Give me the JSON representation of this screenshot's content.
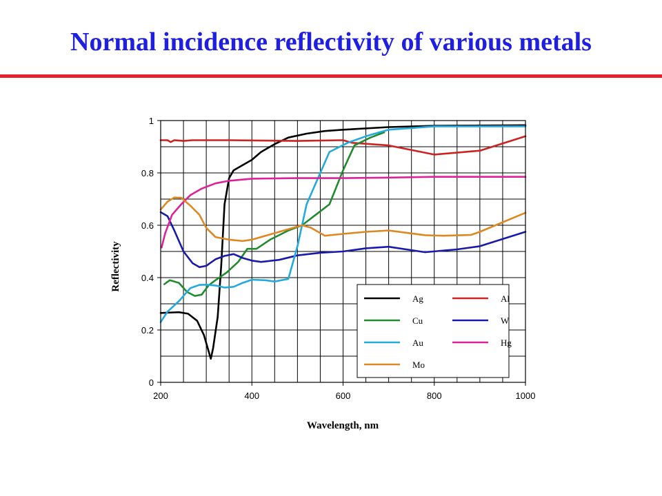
{
  "slide": {
    "title": "Normal incidence reflectivity of various metals",
    "accent_color": "#1f1fe0",
    "rule_color": "#e8202e"
  },
  "chart_data": {
    "type": "line",
    "title": "",
    "xlabel": "Wavelength, nm",
    "ylabel": "Reflectivity",
    "xlim": [
      200,
      1000
    ],
    "ylim": [
      0,
      1
    ],
    "x_ticks": [
      200,
      400,
      600,
      800,
      1000
    ],
    "y_ticks": [
      0,
      0.2,
      0.4,
      0.6,
      0.8,
      1
    ],
    "y_tick_labels": [
      "0",
      "0.2",
      "0.4",
      "0.6",
      "0.8",
      "1"
    ],
    "grid": true,
    "legend_position": "bottom-right",
    "series": [
      {
        "name": "Ag",
        "color": "#000000",
        "points": [
          [
            200,
            0.265
          ],
          [
            240,
            0.268
          ],
          [
            260,
            0.262
          ],
          [
            280,
            0.235
          ],
          [
            295,
            0.18
          ],
          [
            305,
            0.12
          ],
          [
            310,
            0.09
          ],
          [
            315,
            0.13
          ],
          [
            325,
            0.25
          ],
          [
            333,
            0.45
          ],
          [
            340,
            0.68
          ],
          [
            350,
            0.78
          ],
          [
            360,
            0.81
          ],
          [
            380,
            0.83
          ],
          [
            400,
            0.85
          ],
          [
            420,
            0.88
          ],
          [
            450,
            0.91
          ],
          [
            480,
            0.935
          ],
          [
            520,
            0.95
          ],
          [
            560,
            0.96
          ],
          [
            600,
            0.965
          ],
          [
            700,
            0.975
          ],
          [
            800,
            0.98
          ],
          [
            1000,
            0.982
          ]
        ]
      },
      {
        "name": "Al",
        "color": "#cc2222",
        "points": [
          [
            200,
            0.925
          ],
          [
            215,
            0.925
          ],
          [
            222,
            0.918
          ],
          [
            230,
            0.925
          ],
          [
            250,
            0.922
          ],
          [
            270,
            0.925
          ],
          [
            350,
            0.925
          ],
          [
            500,
            0.922
          ],
          [
            600,
            0.925
          ],
          [
            620,
            0.915
          ],
          [
            700,
            0.905
          ],
          [
            800,
            0.87
          ],
          [
            900,
            0.885
          ],
          [
            1000,
            0.94
          ]
        ]
      },
      {
        "name": "Cu",
        "color": "#1f8a2e",
        "points": [
          [
            208,
            0.375
          ],
          [
            220,
            0.39
          ],
          [
            240,
            0.38
          ],
          [
            258,
            0.345
          ],
          [
            275,
            0.33
          ],
          [
            290,
            0.335
          ],
          [
            305,
            0.37
          ],
          [
            320,
            0.39
          ],
          [
            345,
            0.42
          ],
          [
            370,
            0.46
          ],
          [
            390,
            0.51
          ],
          [
            410,
            0.51
          ],
          [
            440,
            0.545
          ],
          [
            480,
            0.58
          ],
          [
            510,
            0.6
          ],
          [
            540,
            0.64
          ],
          [
            570,
            0.68
          ],
          [
            600,
            0.81
          ],
          [
            625,
            0.905
          ],
          [
            660,
            0.935
          ],
          [
            690,
            0.955
          ]
        ]
      },
      {
        "name": "W",
        "color": "#1a1aaa",
        "points": [
          [
            200,
            0.65
          ],
          [
            215,
            0.635
          ],
          [
            230,
            0.58
          ],
          [
            250,
            0.5
          ],
          [
            270,
            0.455
          ],
          [
            285,
            0.44
          ],
          [
            300,
            0.445
          ],
          [
            320,
            0.47
          ],
          [
            340,
            0.483
          ],
          [
            360,
            0.49
          ],
          [
            380,
            0.475
          ],
          [
            400,
            0.465
          ],
          [
            420,
            0.46
          ],
          [
            460,
            0.468
          ],
          [
            500,
            0.485
          ],
          [
            550,
            0.495
          ],
          [
            600,
            0.5
          ],
          [
            650,
            0.512
          ],
          [
            700,
            0.518
          ],
          [
            780,
            0.497
          ],
          [
            850,
            0.508
          ],
          [
            900,
            0.52
          ],
          [
            1000,
            0.575
          ]
        ]
      },
      {
        "name": "Au",
        "color": "#22aadd",
        "points": [
          [
            200,
            0.23
          ],
          [
            215,
            0.27
          ],
          [
            240,
            0.31
          ],
          [
            265,
            0.36
          ],
          [
            285,
            0.372
          ],
          [
            300,
            0.373
          ],
          [
            320,
            0.37
          ],
          [
            340,
            0.362
          ],
          [
            360,
            0.365
          ],
          [
            380,
            0.38
          ],
          [
            400,
            0.392
          ],
          [
            430,
            0.39
          ],
          [
            450,
            0.385
          ],
          [
            480,
            0.395
          ],
          [
            500,
            0.52
          ],
          [
            520,
            0.68
          ],
          [
            545,
            0.78
          ],
          [
            570,
            0.88
          ],
          [
            610,
            0.915
          ],
          [
            650,
            0.94
          ],
          [
            700,
            0.965
          ],
          [
            800,
            0.978
          ],
          [
            1000,
            0.978
          ]
        ]
      },
      {
        "name": "Hg",
        "color": "#dd2299",
        "points": [
          [
            202,
            0.515
          ],
          [
            210,
            0.57
          ],
          [
            225,
            0.64
          ],
          [
            245,
            0.68
          ],
          [
            265,
            0.715
          ],
          [
            290,
            0.74
          ],
          [
            320,
            0.76
          ],
          [
            350,
            0.77
          ],
          [
            400,
            0.778
          ],
          [
            500,
            0.78
          ],
          [
            600,
            0.78
          ],
          [
            700,
            0.782
          ],
          [
            800,
            0.785
          ],
          [
            1000,
            0.785
          ]
        ]
      },
      {
        "name": "Mo",
        "color": "#dd8822",
        "points": [
          [
            200,
            0.66
          ],
          [
            215,
            0.69
          ],
          [
            230,
            0.706
          ],
          [
            245,
            0.705
          ],
          [
            265,
            0.675
          ],
          [
            285,
            0.64
          ],
          [
            300,
            0.59
          ],
          [
            320,
            0.555
          ],
          [
            350,
            0.545
          ],
          [
            380,
            0.54
          ],
          [
            400,
            0.545
          ],
          [
            430,
            0.56
          ],
          [
            470,
            0.58
          ],
          [
            510,
            0.6
          ],
          [
            530,
            0.59
          ],
          [
            560,
            0.56
          ],
          [
            600,
            0.567
          ],
          [
            650,
            0.575
          ],
          [
            700,
            0.58
          ],
          [
            780,
            0.562
          ],
          [
            820,
            0.56
          ],
          [
            880,
            0.563
          ],
          [
            900,
            0.575
          ],
          [
            1000,
            0.648
          ]
        ]
      }
    ]
  }
}
